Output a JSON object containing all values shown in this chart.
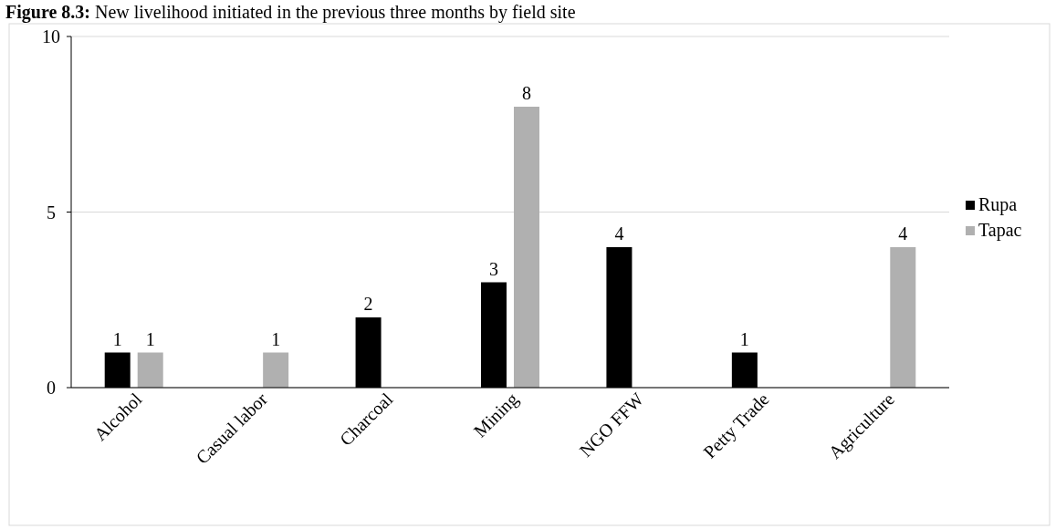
{
  "chart_data": {
    "type": "bar",
    "title": "Figure 8.3: New livelihood initiated in the previous three months by field site",
    "categories": [
      "Alcohol",
      "Casual labor",
      "Charcoal",
      "Mining",
      "NGO FFW",
      "Petty Trade",
      "Agriculture"
    ],
    "series": [
      {
        "name": "Rupa",
        "color": "#000000",
        "values": [
          1,
          null,
          2,
          3,
          4,
          1,
          null
        ]
      },
      {
        "name": "Tapac",
        "color": "#b0b0b0",
        "values": [
          1,
          1,
          null,
          8,
          null,
          null,
          4
        ]
      }
    ],
    "ylim": [
      0,
      10
    ],
    "yticks": [
      0,
      5,
      10
    ],
    "grid": "y",
    "legend": "right",
    "data_labels": true
  }
}
